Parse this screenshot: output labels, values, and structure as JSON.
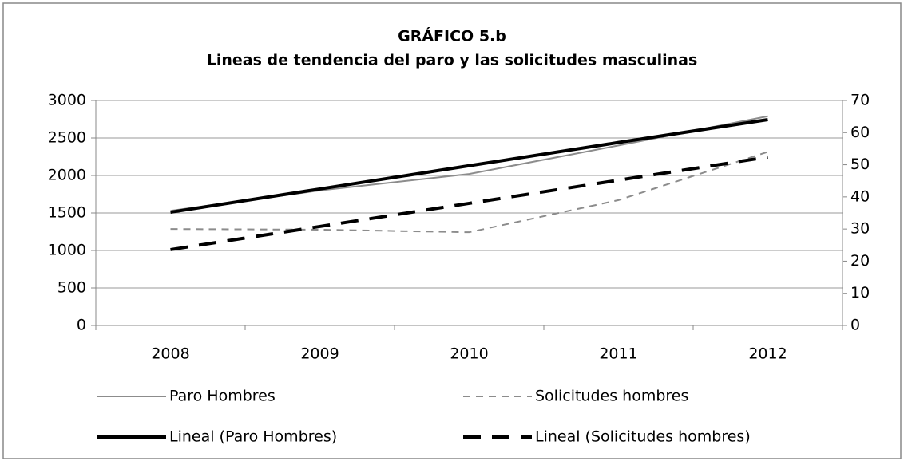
{
  "chart_data": {
    "type": "line",
    "title": "GRÁFICO 5.b",
    "subtitle": "Lineas de tendencia del paro y las solicitudes masculinas",
    "categories": [
      "2008",
      "2009",
      "2010",
      "2011",
      "2012"
    ],
    "ylim": [
      0,
      3000
    ],
    "yticks": [
      0,
      500,
      1000,
      1500,
      2000,
      2500,
      3000
    ],
    "y2lim": [
      0,
      70
    ],
    "y2ticks": [
      0,
      10,
      20,
      30,
      40,
      50,
      60,
      70
    ],
    "grid": true,
    "series": [
      {
        "name": "Paro Hombres",
        "color": "#8c8c8c",
        "style": "solid",
        "line_width": 2,
        "values": [
          1530,
          1800,
          2020,
          2400,
          2790
        ]
      },
      {
        "name": "Solicitudes hombres",
        "color": "#8c8c8c",
        "style": "dashed",
        "line_width": 2,
        "axis": "y2",
        "values": [
          30,
          29.8,
          29,
          39,
          54
        ]
      },
      {
        "name": "Lineal (Paro Hombres)",
        "color": "#000000",
        "style": "solid",
        "line_width": 4,
        "values": [
          1510,
          1820,
          2130,
          2440,
          2745
        ]
      },
      {
        "name": "Lineal (Solicitudes hombres)",
        "color": "#000000",
        "style": "dashed",
        "line_width": 4,
        "axis": "y2",
        "values": [
          23.6,
          30.8,
          38,
          45.2,
          52.4
        ]
      }
    ]
  }
}
